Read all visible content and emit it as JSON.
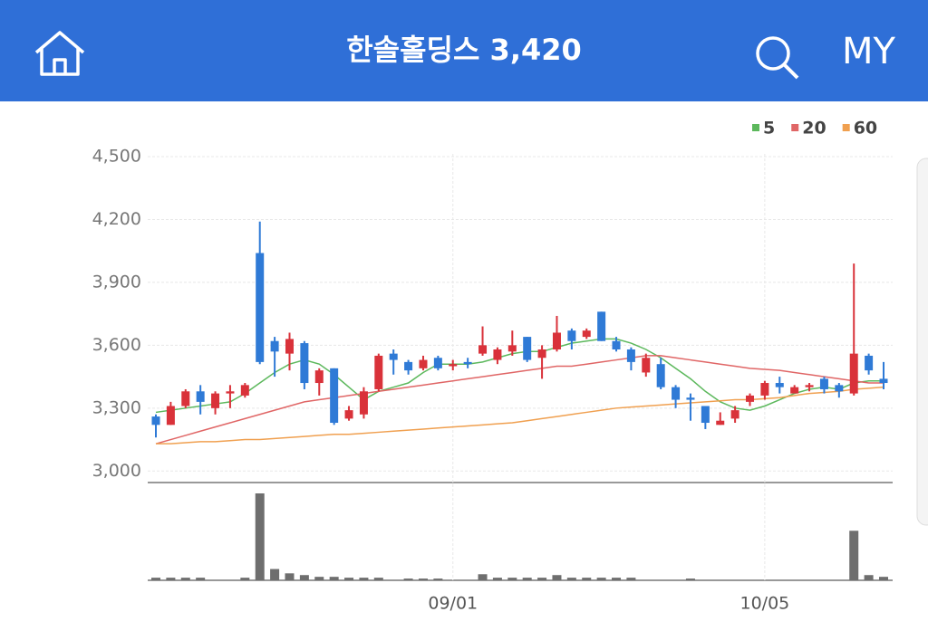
{
  "header": {
    "title": "한솔홀딩스 3,420",
    "my": "MY"
  },
  "chart_data": {
    "type": "candlestick",
    "categories": [
      null,
      null,
      null,
      null,
      null,
      null,
      null,
      null,
      null,
      null,
      null,
      null,
      null,
      null,
      null,
      null,
      null,
      null,
      null,
      null,
      "09/01",
      null,
      null,
      null,
      null,
      null,
      null,
      null,
      null,
      null,
      null,
      null,
      null,
      null,
      null,
      null,
      null,
      null,
      null,
      null,
      null,
      "10/05",
      null,
      null,
      null,
      null,
      null,
      null,
      null,
      null
    ],
    "open": [
      3260,
      3220,
      3310,
      3380,
      3300,
      3370,
      3360,
      4040,
      3620,
      3560,
      3610,
      3420,
      3490,
      3250,
      3270,
      3390,
      3560,
      3520,
      3490,
      3540,
      3500,
      3520,
      3560,
      3530,
      3570,
      3640,
      3540,
      3580,
      3670,
      3640,
      3760,
      3620,
      3580,
      3470,
      3510,
      3400,
      3350,
      3310,
      3220,
      3250,
      3330,
      3360,
      3420,
      3370,
      3400,
      3440,
      3410,
      3370,
      3550,
      3440
    ],
    "high": [
      3270,
      3330,
      3390,
      3410,
      3380,
      3410,
      3420,
      4190,
      3640,
      3660,
      3620,
      3490,
      3490,
      3310,
      3400,
      3560,
      3580,
      3530,
      3550,
      3550,
      3530,
      3540,
      3690,
      3590,
      3670,
      3640,
      3600,
      3740,
      3680,
      3680,
      3760,
      3640,
      3590,
      3560,
      3540,
      3410,
      3370,
      3310,
      3280,
      3310,
      3370,
      3430,
      3450,
      3410,
      3420,
      3450,
      3420,
      3990,
      3560,
      3520
    ],
    "low": [
      3160,
      3220,
      3300,
      3270,
      3270,
      3300,
      3350,
      3510,
      3450,
      3480,
      3390,
      3360,
      3220,
      3240,
      3250,
      3380,
      3460,
      3460,
      3480,
      3480,
      3480,
      3490,
      3550,
      3510,
      3550,
      3520,
      3440,
      3570,
      3580,
      3630,
      3620,
      3570,
      3480,
      3450,
      3390,
      3300,
      3240,
      3200,
      3220,
      3230,
      3310,
      3340,
      3370,
      3370,
      3380,
      3370,
      3350,
      3360,
      3460,
      3390
    ],
    "close": [
      3220,
      3310,
      3380,
      3330,
      3370,
      3380,
      3410,
      3520,
      3570,
      3630,
      3420,
      3480,
      3230,
      3290,
      3380,
      3550,
      3530,
      3480,
      3530,
      3490,
      3510,
      3510,
      3600,
      3580,
      3600,
      3530,
      3580,
      3660,
      3620,
      3670,
      3620,
      3580,
      3520,
      3540,
      3400,
      3340,
      3340,
      3230,
      3240,
      3290,
      3360,
      3420,
      3400,
      3400,
      3410,
      3390,
      3380,
      3560,
      3480,
      3420
    ],
    "up_color": "#d9323a",
    "down_color": "#2f7ad6",
    "ylim": [
      2945,
      4500
    ],
    "yticks": [
      {
        "value": 3000,
        "label": "3,000"
      },
      {
        "value": 3300,
        "label": "3,300"
      },
      {
        "value": 3600,
        "label": "3,600"
      },
      {
        "value": 3900,
        "label": "3,900"
      },
      {
        "value": 4200,
        "label": "4,200"
      },
      {
        "value": 4500,
        "label": "4,500"
      }
    ],
    "grid": true,
    "legend": "top-right",
    "series": [
      {
        "name": "5",
        "color": "#5cb85c",
        "values": [
          3280,
          3290,
          3300,
          3310,
          3320,
          3330,
          3370,
          3420,
          3470,
          3510,
          3530,
          3510,
          3460,
          3400,
          3340,
          3380,
          3400,
          3420,
          3470,
          3510,
          3510,
          3510,
          3520,
          3540,
          3560,
          3570,
          3570,
          3590,
          3610,
          3620,
          3630,
          3630,
          3610,
          3580,
          3540,
          3490,
          3440,
          3380,
          3330,
          3300,
          3290,
          3310,
          3340,
          3370,
          3390,
          3400,
          3390,
          3420,
          3430,
          3430
        ]
      },
      {
        "name": "20",
        "color": "#e06666",
        "values": [
          3130,
          3150,
          3170,
          3190,
          3210,
          3230,
          3250,
          3270,
          3290,
          3310,
          3330,
          3340,
          3350,
          3360,
          3370,
          3380,
          3390,
          3400,
          3410,
          3420,
          3430,
          3440,
          3450,
          3460,
          3470,
          3480,
          3490,
          3500,
          3500,
          3510,
          3520,
          3530,
          3540,
          3550,
          3550,
          3540,
          3530,
          3520,
          3510,
          3500,
          3490,
          3485,
          3480,
          3470,
          3460,
          3450,
          3440,
          3430,
          3420,
          3420
        ]
      },
      {
        "name": "60",
        "color": "#f0a050",
        "values": [
          3130,
          3130,
          3135,
          3140,
          3140,
          3145,
          3150,
          3150,
          3155,
          3160,
          3165,
          3170,
          3175,
          3175,
          3180,
          3185,
          3190,
          3195,
          3200,
          3205,
          3210,
          3215,
          3220,
          3225,
          3230,
          3240,
          3250,
          3260,
          3270,
          3280,
          3290,
          3300,
          3305,
          3310,
          3315,
          3320,
          3325,
          3330,
          3335,
          3340,
          3340,
          3345,
          3350,
          3360,
          3370,
          3375,
          3380,
          3390,
          3395,
          3400
        ]
      }
    ],
    "volume": {
      "color": "#6e6e6e",
      "ylim": [
        0,
        100
      ],
      "values": [
        3,
        3,
        3,
        3,
        0,
        0,
        3,
        100,
        13,
        8,
        6,
        4,
        4,
        3,
        3,
        3,
        0,
        2,
        2,
        2,
        0,
        0,
        7,
        3,
        3,
        3,
        3,
        6,
        3,
        3,
        3,
        3,
        3,
        0,
        0,
        0,
        2,
        0,
        0,
        0,
        0,
        0,
        0,
        0,
        0,
        0,
        0,
        57,
        6,
        4
      ]
    }
  }
}
